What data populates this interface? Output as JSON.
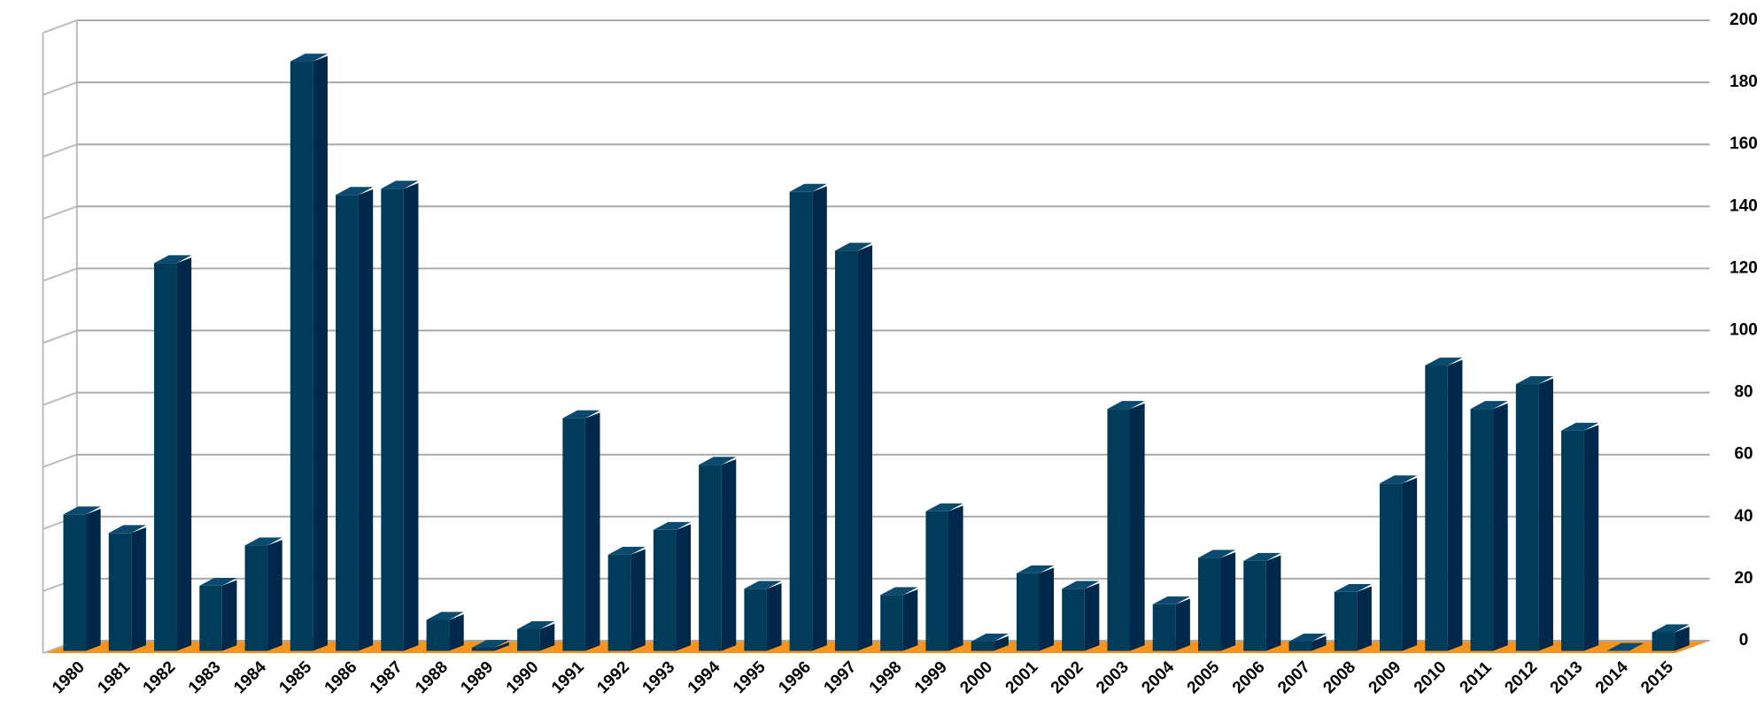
{
  "chart_data": {
    "type": "bar3d",
    "categories": [
      "1980",
      "1981",
      "1982",
      "1983",
      "1984",
      "1985",
      "1986",
      "1987",
      "1988",
      "1989",
      "1990",
      "1991",
      "1992",
      "1993",
      "1994",
      "1995",
      "1996",
      "1997",
      "1998",
      "1999",
      "2000",
      "2001",
      "2002",
      "2003",
      "2004",
      "2005",
      "2006",
      "2007",
      "2008",
      "2009",
      "2010",
      "2011",
      "2012",
      "2013",
      "2014",
      "2015"
    ],
    "values": [
      44,
      38,
      125,
      21,
      34,
      190,
      147,
      149,
      10,
      1,
      7,
      75,
      31,
      39,
      60,
      20,
      148,
      129,
      18,
      45,
      3,
      25,
      20,
      78,
      15,
      30,
      29,
      3,
      19,
      54,
      92,
      78,
      86,
      71,
      0,
      6
    ],
    "color": "#003c5a",
    "floor_color": "#f7941d",
    "ylim": [
      0,
      200
    ],
    "yticks": [
      0,
      20,
      40,
      60,
      80,
      100,
      120,
      140,
      160,
      180,
      200
    ],
    "grid": true
  }
}
